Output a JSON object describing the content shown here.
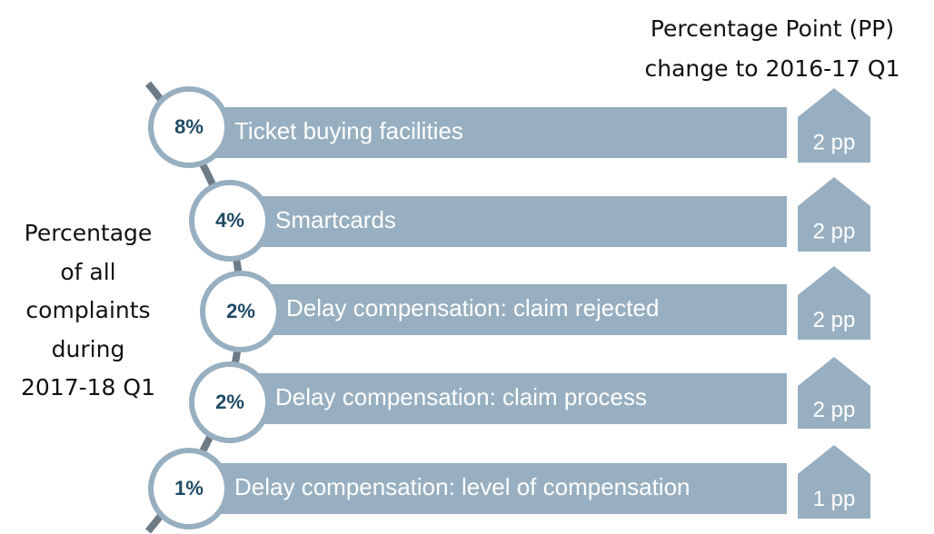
{
  "header_lines": [
    "Percentage Point (PP)",
    "change to 2016-17 Q1"
  ],
  "side_label_lines": [
    "Percentage",
    "of all",
    "complaints",
    "during",
    "2017-18 Q1"
  ],
  "items": [
    {
      "percent": "8%",
      "label": "Ticket buying facilities",
      "change": "2 pp"
    },
    {
      "percent": "4%",
      "label": "Smartcards",
      "change": "2 pp"
    },
    {
      "percent": "2%",
      "label": "Delay compensation:  claim rejected",
      "change": "2 pp"
    },
    {
      "percent": "2%",
      "label": "Delay compensation:  claim process",
      "change": "2 pp"
    },
    {
      "percent": "1%",
      "label": "Delay compensation:  level of compensation",
      "change": "1 pp"
    }
  ]
}
